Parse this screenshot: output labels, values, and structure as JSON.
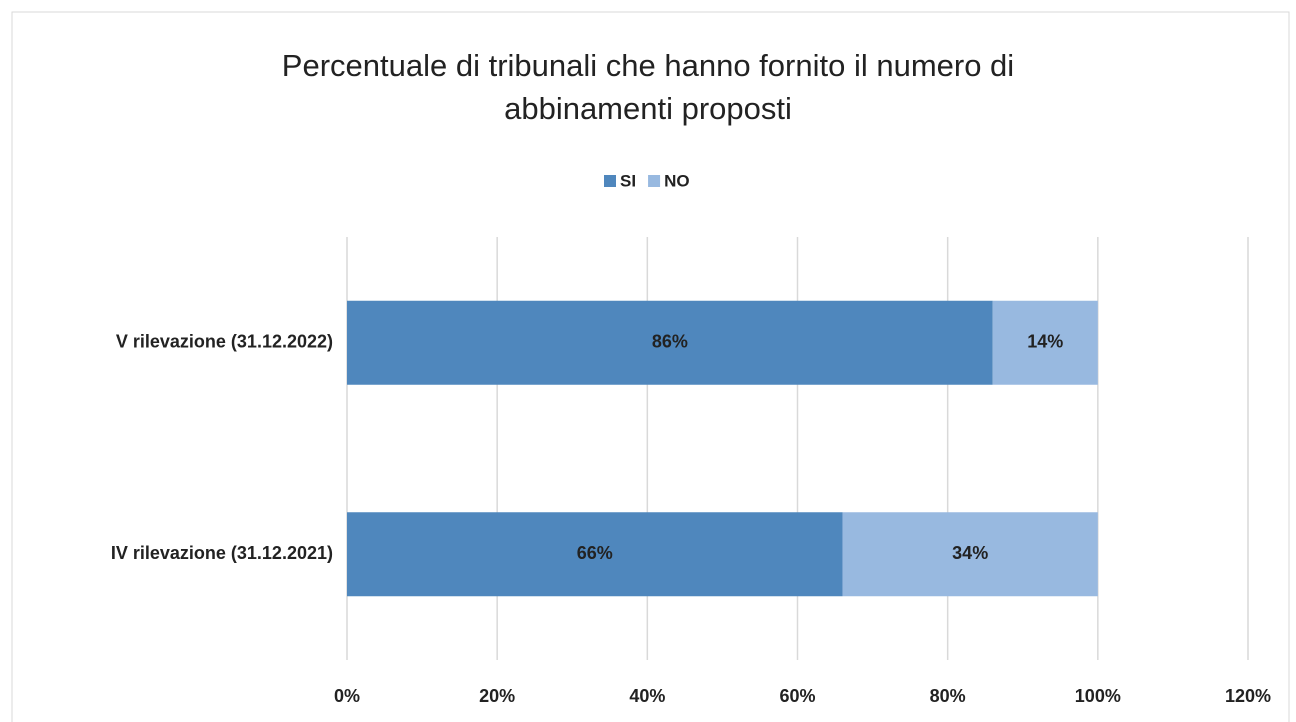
{
  "chart_data": {
    "type": "stacked-bar-horizontal",
    "title": "Percentuale di tribunali che hanno fornito il numero di abbinamenti proposti",
    "categories": [
      "V rilevazione (31.12.2022)",
      "IV rilevazione (31.12.2021)"
    ],
    "series": [
      {
        "name": "SI",
        "color": "#4f87bd",
        "values": [
          86,
          66
        ],
        "value_labels": [
          "86%",
          "66%"
        ]
      },
      {
        "name": "NO",
        "color": "#98b9e0",
        "values": [
          14,
          34
        ],
        "value_labels": [
          "14%",
          "34%"
        ]
      }
    ],
    "xlim": [
      0,
      120
    ],
    "xticks": [
      {
        "value": 0,
        "label": "0%"
      },
      {
        "value": 20,
        "label": "20%"
      },
      {
        "value": 40,
        "label": "40%"
      },
      {
        "value": 60,
        "label": "60%"
      },
      {
        "value": 80,
        "label": "80%"
      },
      {
        "value": 100,
        "label": "100%"
      },
      {
        "value": 120,
        "label": "120%"
      }
    ],
    "grid": true,
    "legend": "top"
  }
}
